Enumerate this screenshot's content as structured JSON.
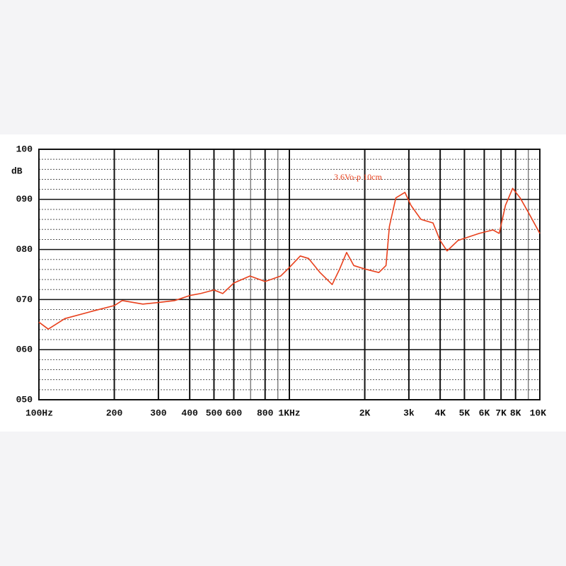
{
  "chart_data": {
    "type": "line",
    "annotation": "3.6Vo-p 10cm",
    "y_label": "dB",
    "log_x": true,
    "xlim": [
      100,
      10000
    ],
    "ylim": [
      50,
      100
    ],
    "xticks": [
      {
        "value": 100,
        "label": "100Hz"
      },
      200,
      300,
      400,
      500,
      600,
      800,
      {
        "value": 1000,
        "label": "1KHz"
      },
      {
        "value": 2000,
        "label": "2K"
      },
      {
        "value": 3000,
        "label": "3k"
      },
      {
        "value": 4000,
        "label": "4K"
      },
      {
        "value": 5000,
        "label": "5K"
      },
      {
        "value": 6000,
        "label": "6K"
      },
      {
        "value": 7000,
        "label": "7K"
      },
      {
        "value": 8000,
        "label": "8K"
      },
      {
        "value": 10000,
        "label": "10K"
      }
    ],
    "yticks": [
      {
        "value": 50,
        "label": "050"
      },
      {
        "value": 60,
        "label": "060"
      },
      {
        "value": 70,
        "label": "070"
      },
      {
        "value": 80,
        "label": "080"
      },
      {
        "value": 90,
        "label": "090"
      },
      100
    ],
    "grid": true,
    "x": [
      100,
      109,
      127,
      164,
      200,
      215,
      260,
      300,
      349,
      400,
      442,
      500,
      542,
      600,
      696,
      800,
      924,
      1000,
      1105,
      1193,
      1325,
      1482,
      1588,
      1693,
      1807,
      2000,
      2277,
      2431,
      2508,
      2662,
      2892,
      3059,
      3353,
      3745,
      4000,
      4263,
      4711,
      5731,
      6500,
      6885,
      7292,
      7792,
      8348,
      9000,
      10000
    ],
    "series": [
      {
        "color": "#e8401c",
        "values": [
          65.5,
          64.1,
          66.2,
          67.7,
          68.8,
          69.8,
          69.1,
          69.4,
          69.8,
          70.8,
          71.2,
          71.9,
          71.2,
          73.3,
          74.7,
          73.6,
          74.7,
          76.4,
          78.7,
          78.2,
          75.4,
          73.0,
          76.1,
          79.4,
          76.8,
          76.1,
          75.4,
          76.8,
          84.6,
          90.3,
          91.4,
          88.8,
          86.0,
          85.3,
          81.8,
          79.7,
          81.8,
          83.2,
          83.9,
          83.2,
          88.8,
          92.2,
          90.3,
          87.4,
          83.2
        ]
      }
    ]
  }
}
